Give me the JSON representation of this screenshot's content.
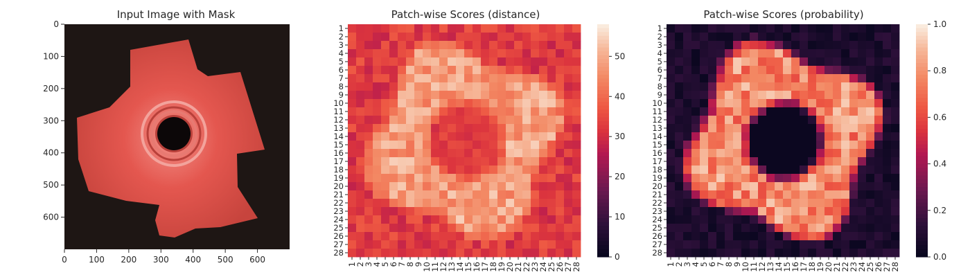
{
  "chart_data": [
    {
      "type": "image",
      "title": "Input Image with Mask",
      "xticks": [
        0,
        100,
        200,
        300,
        400,
        500,
        600
      ],
      "yticks": [
        0,
        100,
        200,
        300,
        400,
        500,
        600
      ],
      "xlim": [
        0,
        700
      ],
      "ylim": [
        700,
        0
      ],
      "colors": {
        "background": "#1e1614",
        "part": "#e4574f",
        "part_light": "#f29088",
        "part_dark": "#b8403a",
        "hole": "#0c0708"
      }
    },
    {
      "type": "heatmap",
      "title": "Patch-wise Scores (distance)",
      "rows": [
        "1",
        "2",
        "3",
        "4",
        "5",
        "6",
        "7",
        "8",
        "9",
        "10",
        "11",
        "12",
        "13",
        "14",
        "15",
        "16",
        "17",
        "18",
        "19",
        "20",
        "21",
        "22",
        "23",
        "24",
        "25",
        "26",
        "27",
        "28"
      ],
      "cols": [
        "1",
        "2",
        "3",
        "4",
        "5",
        "6",
        "7",
        "8",
        "9",
        "10",
        "11",
        "12",
        "13",
        "14",
        "15",
        "16",
        "17",
        "18",
        "19",
        "20",
        "21",
        "22",
        "23",
        "24",
        "25",
        "26",
        "27",
        "28"
      ],
      "colorbar": {
        "ticks": [
          0,
          10,
          20,
          30,
          40,
          50
        ],
        "min": 0,
        "max": 58
      },
      "colormap": "rocket"
    },
    {
      "type": "heatmap",
      "title": "Patch-wise Scores (probability)",
      "rows": [
        "1",
        "2",
        "3",
        "4",
        "5",
        "6",
        "7",
        "8",
        "9",
        "10",
        "11",
        "12",
        "13",
        "14",
        "15",
        "16",
        "17",
        "18",
        "19",
        "20",
        "21",
        "22",
        "23",
        "24",
        "25",
        "26",
        "27",
        "28"
      ],
      "cols": [
        "1",
        "2",
        "3",
        "4",
        "5",
        "6",
        "7",
        "8",
        "9",
        "10",
        "11",
        "12",
        "13",
        "14",
        "15",
        "16",
        "17",
        "18",
        "19",
        "20",
        "21",
        "22",
        "23",
        "24",
        "25",
        "26",
        "27",
        "28"
      ],
      "colorbar": {
        "ticks": [
          "0.0",
          "0.2",
          "0.4",
          "0.6",
          "0.8",
          "1.0"
        ],
        "min": 0,
        "max": 1
      },
      "colormap": "rocket"
    }
  ]
}
